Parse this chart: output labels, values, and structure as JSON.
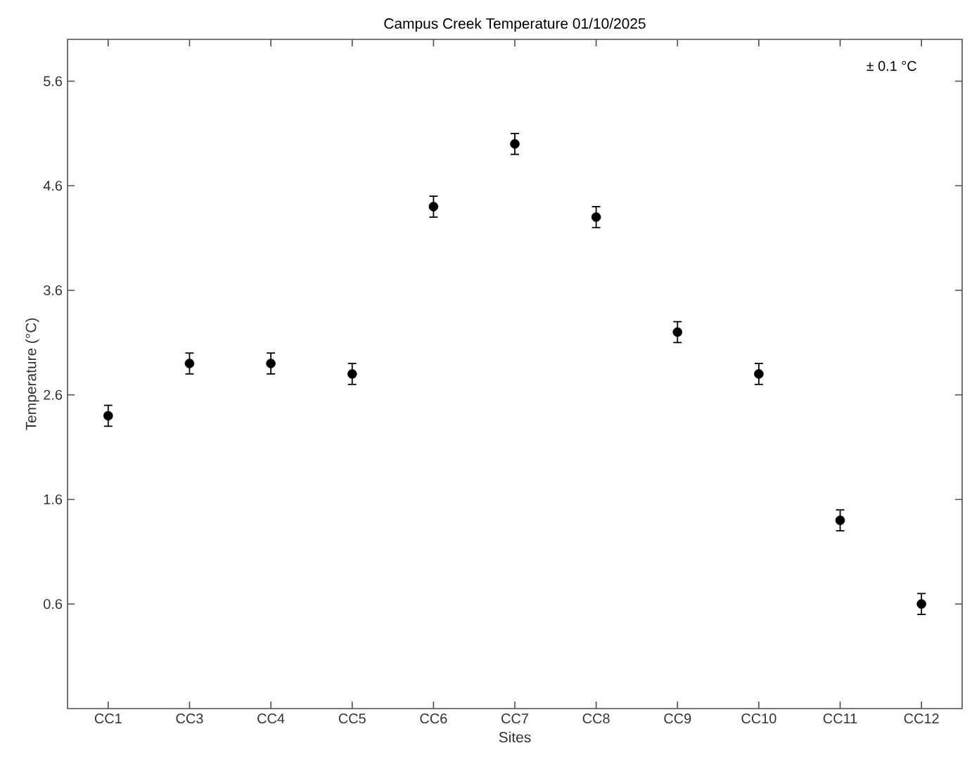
{
  "chart_data": {
    "type": "scatter",
    "title": "Campus Creek Temperature 01/10/2025",
    "xlabel": "Sites",
    "ylabel": "Temperature (°C)",
    "categories": [
      "CC1",
      "CC3",
      "CC4",
      "CC5",
      "CC6",
      "CC7",
      "CC8",
      "CC9",
      "CC10",
      "CC11",
      "CC12"
    ],
    "values": [
      2.4,
      2.9,
      2.9,
      2.8,
      4.4,
      5.0,
      4.3,
      3.2,
      2.8,
      1.4,
      0.6
    ],
    "errors": [
      0.1,
      0.1,
      0.1,
      0.1,
      0.1,
      0.1,
      0.1,
      0.1,
      0.1,
      0.1,
      0.1
    ],
    "color": "#000000",
    "ylim": [
      -0.4,
      6.0
    ],
    "yticks": [
      0.6,
      1.6,
      2.6,
      3.6,
      4.6,
      5.6
    ],
    "annotations": [
      "± 0.1 °C"
    ]
  }
}
